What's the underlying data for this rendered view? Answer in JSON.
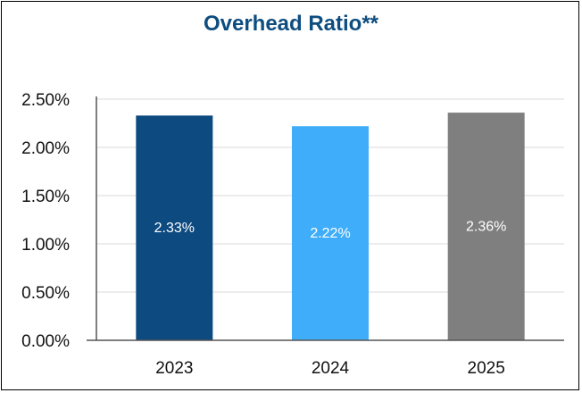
{
  "chart_data": {
    "type": "bar",
    "title": "Overhead Ratio**",
    "categories": [
      "2023",
      "2024",
      "2025"
    ],
    "values": [
      2.33,
      2.22,
      2.36
    ],
    "data_labels": [
      "2.33%",
      "2.22%",
      "2.36%"
    ],
    "colors": [
      "#0d4a7f",
      "#3fadfa",
      "#7f7f7f"
    ],
    "xlabel": "",
    "ylabel": "",
    "ylim": [
      0,
      2.5
    ],
    "yticks": [
      0,
      0.5,
      1.0,
      1.5,
      2.0,
      2.5
    ],
    "ytick_labels": [
      "0.00%",
      "0.50%",
      "1.00%",
      "1.50%",
      "2.00%",
      "2.50%"
    ],
    "grid": true,
    "legend": "none"
  }
}
